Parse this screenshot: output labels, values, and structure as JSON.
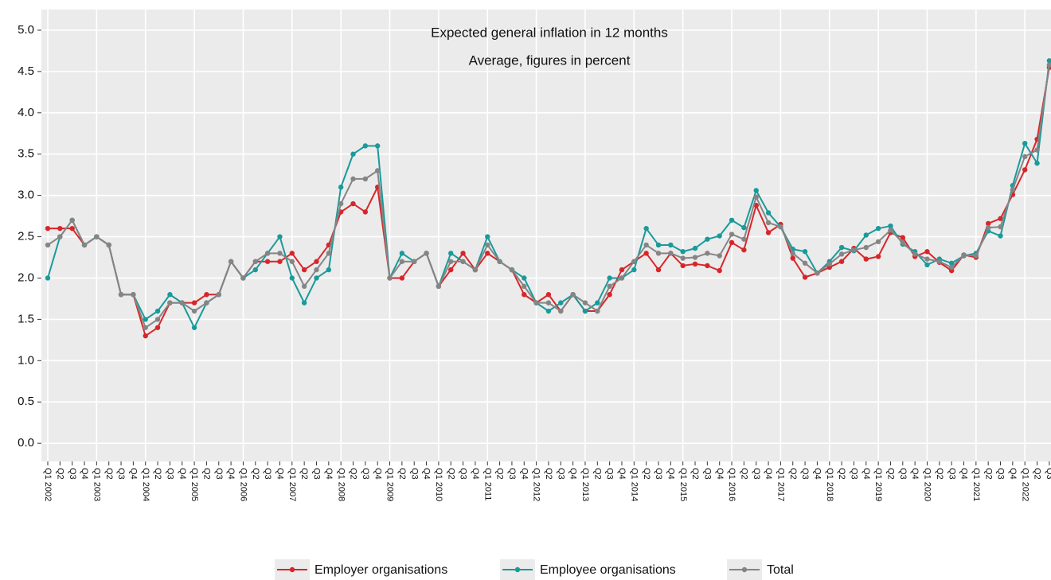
{
  "chart_data": {
    "type": "line",
    "title": "Expected general inflation in 12 months",
    "subtitle": "Average, figures in percent",
    "categories": [
      "Q1 2002",
      "Q2",
      "Q3",
      "Q4",
      "Q1 2003",
      "Q2",
      "Q3",
      "Q4",
      "Q1 2004",
      "Q2",
      "Q3",
      "Q4",
      "Q1 2005",
      "Q2",
      "Q3",
      "Q4",
      "Q1 2006",
      "Q2",
      "Q3",
      "Q4",
      "Q1 2007",
      "Q2",
      "Q3",
      "Q4",
      "Q1 2008",
      "Q2",
      "Q3",
      "Q4",
      "Q1 2009",
      "Q2",
      "Q3",
      "Q4",
      "Q1 2010",
      "Q2",
      "Q3",
      "Q4",
      "Q1 2011",
      "Q2",
      "Q3",
      "Q4",
      "Q1 2012",
      "Q2",
      "Q3",
      "Q4",
      "Q1 2013",
      "Q2",
      "Q3",
      "Q4",
      "Q1 2014",
      "Q2",
      "Q3",
      "Q4",
      "Q1 2015",
      "Q2",
      "Q3",
      "Q4",
      "Q1 2016",
      "Q2",
      "Q3",
      "Q4",
      "Q1 2017",
      "Q2",
      "Q3",
      "Q4",
      "Q1 2018",
      "Q2",
      "Q3",
      "Q4",
      "Q1 2019",
      "Q2",
      "Q3",
      "Q4",
      "Q1 2020",
      "Q2",
      "Q3",
      "Q4",
      "Q1 2021",
      "Q2",
      "Q3",
      "Q4",
      "Q1 2022",
      "Q2",
      "Q3"
    ],
    "series": [
      {
        "name": "Employer organisations",
        "color": "#d7262b",
        "values": [
          2.6,
          2.6,
          2.6,
          2.4,
          2.5,
          2.4,
          1.8,
          1.8,
          1.3,
          1.4,
          1.7,
          1.7,
          1.7,
          1.8,
          1.8,
          2.2,
          2.0,
          2.2,
          2.2,
          2.2,
          2.3,
          2.1,
          2.2,
          2.4,
          2.8,
          2.9,
          2.8,
          3.1,
          2.0,
          2.0,
          2.2,
          2.3,
          1.9,
          2.1,
          2.3,
          2.1,
          2.3,
          2.2,
          2.1,
          1.8,
          1.7,
          1.8,
          1.6,
          1.8,
          1.6,
          1.6,
          1.8,
          2.1,
          2.2,
          2.3,
          2.1,
          2.3,
          2.15,
          2.17,
          2.15,
          2.09,
          2.43,
          2.34,
          2.88,
          2.55,
          2.65,
          2.24,
          2.01,
          2.06,
          2.13,
          2.2,
          2.36,
          2.23,
          2.26,
          2.55,
          2.49,
          2.26,
          2.32,
          2.19,
          2.09,
          2.28,
          2.25,
          2.66,
          2.72,
          3.01,
          3.31,
          3.68,
          4.55
        ]
      },
      {
        "name": "Employee organisations",
        "color": "#1a9a9a",
        "values": [
          2.0,
          2.5,
          2.7,
          2.4,
          2.5,
          2.4,
          1.8,
          1.8,
          1.5,
          1.6,
          1.8,
          1.7,
          1.4,
          1.7,
          1.8,
          2.2,
          2.0,
          2.1,
          2.3,
          2.5,
          2.0,
          1.7,
          2.0,
          2.1,
          3.1,
          3.5,
          3.6,
          3.6,
          2.0,
          2.3,
          2.2,
          2.3,
          1.9,
          2.3,
          2.2,
          2.1,
          2.5,
          2.2,
          2.1,
          2.0,
          1.7,
          1.6,
          1.7,
          1.8,
          1.6,
          1.7,
          2.0,
          2.0,
          2.1,
          2.6,
          2.4,
          2.4,
          2.32,
          2.36,
          2.47,
          2.51,
          2.7,
          2.61,
          3.06,
          2.79,
          2.62,
          2.35,
          2.32,
          2.06,
          2.2,
          2.37,
          2.33,
          2.52,
          2.6,
          2.63,
          2.41,
          2.32,
          2.16,
          2.23,
          2.18,
          2.27,
          2.3,
          2.57,
          2.51,
          3.12,
          3.63,
          3.39,
          4.63
        ]
      },
      {
        "name": "Total",
        "color": "#858585",
        "values": [
          2.4,
          2.5,
          2.7,
          2.4,
          2.5,
          2.4,
          1.8,
          1.8,
          1.4,
          1.5,
          1.7,
          1.7,
          1.6,
          1.7,
          1.8,
          2.2,
          2.0,
          2.2,
          2.3,
          2.3,
          2.2,
          1.9,
          2.1,
          2.3,
          2.9,
          3.2,
          3.2,
          3.3,
          2.0,
          2.2,
          2.2,
          2.3,
          1.9,
          2.2,
          2.2,
          2.1,
          2.4,
          2.2,
          2.1,
          1.9,
          1.7,
          1.7,
          1.6,
          1.8,
          1.7,
          1.6,
          1.9,
          2.0,
          2.2,
          2.4,
          2.3,
          2.3,
          2.24,
          2.25,
          2.3,
          2.27,
          2.53,
          2.47,
          2.98,
          2.67,
          2.62,
          2.3,
          2.18,
          2.06,
          2.17,
          2.29,
          2.34,
          2.37,
          2.44,
          2.58,
          2.43,
          2.29,
          2.23,
          2.2,
          2.13,
          2.28,
          2.27,
          2.61,
          2.62,
          3.07,
          3.47,
          3.55,
          4.58
        ]
      }
    ],
    "ylim": [
      -0.22,
      5.25
    ],
    "yticks": [
      {
        "value": 0,
        "label": "0.0"
      },
      {
        "value": 0.5,
        "label": "0.5"
      },
      {
        "value": 1,
        "label": "1.0"
      },
      {
        "value": 1.5,
        "label": "1.5"
      },
      {
        "value": 2,
        "label": "2.0"
      },
      {
        "value": 2.5,
        "label": "2.5"
      },
      {
        "value": 3,
        "label": "3.0"
      },
      {
        "value": 3.5,
        "label": "3.5"
      },
      {
        "value": 4,
        "label": "4.0"
      },
      {
        "value": 4.5,
        "label": "4.5"
      },
      {
        "value": 5,
        "label": "5.0"
      }
    ],
    "grid": true
  }
}
